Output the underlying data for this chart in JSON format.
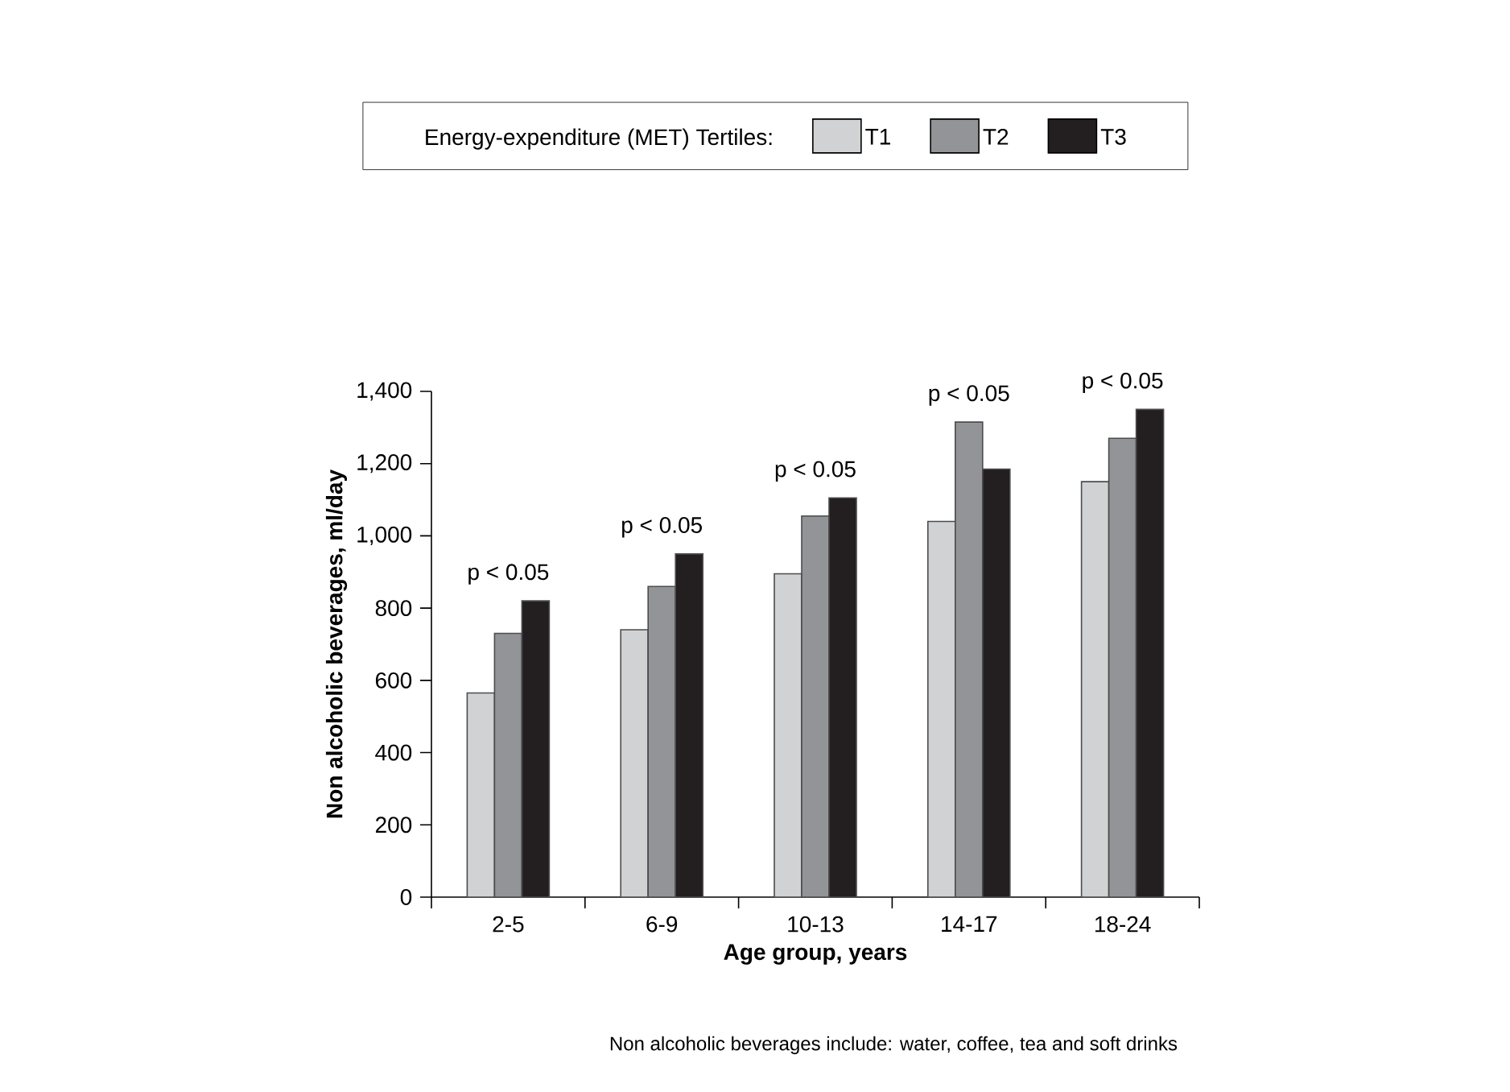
{
  "chart_data": {
    "type": "bar",
    "xlabel": "Age group, years",
    "ylabel": "Non alcoholic beverages, ml/day",
    "legend_title": "Energy-expenditure (MET) Tertiles:",
    "categories": [
      "2-5",
      "6-9",
      "10-13",
      "14-17",
      "18-24"
    ],
    "series": [
      {
        "name": "T1",
        "color": "#d1d2d4",
        "values": [
          565,
          740,
          895,
          1040,
          1150
        ]
      },
      {
        "name": "T2",
        "color": "#939497",
        "values": [
          730,
          860,
          1055,
          1315,
          1270
        ]
      },
      {
        "name": "T3",
        "color": "#231f20",
        "values": [
          820,
          950,
          1105,
          1185,
          1350
        ]
      }
    ],
    "ylim": [
      0,
      1400
    ],
    "yticks": [
      0,
      200,
      400,
      600,
      800,
      {
        "value": 1000,
        "label": "1,000"
      },
      {
        "value": 1200,
        "label": "1,200"
      },
      {
        "value": 1400,
        "label": "1,400"
      }
    ],
    "legend": "top",
    "annotations": [
      "p < 0.05",
      "p < 0.05",
      "p < 0.05",
      "p < 0.05",
      "p < 0.05",
      "Non alcoholic beverages include: water, coffee, tea and soft drinks"
    ]
  }
}
